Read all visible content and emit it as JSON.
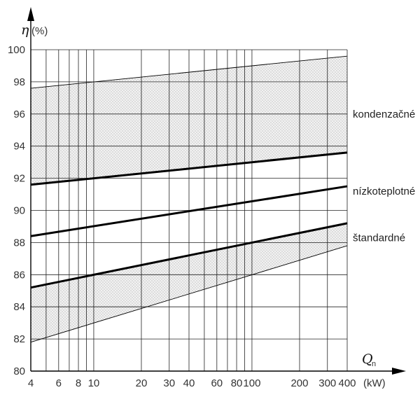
{
  "chart_data": {
    "type": "line",
    "x_scale": "log",
    "xlim": [
      4,
      400
    ],
    "ylim": [
      80,
      100
    ],
    "y_axis": {
      "symbol": "η",
      "unit": "(%)"
    },
    "x_axis": {
      "symbol": "Q",
      "subscript": "n",
      "unit": "(kW)"
    },
    "y_ticks": [
      80,
      82,
      84,
      86,
      88,
      90,
      92,
      94,
      96,
      98,
      100
    ],
    "x_ticks": [
      4,
      6,
      8,
      10,
      20,
      30,
      40,
      60,
      80,
      100,
      200,
      300,
      400
    ],
    "x_gridlines": [
      4,
      5,
      6,
      7,
      8,
      9,
      10,
      20,
      30,
      40,
      50,
      60,
      70,
      80,
      90,
      100,
      200,
      300,
      400
    ],
    "grid": true,
    "bands": [
      {
        "name": "kondenzačné",
        "lower": [
          [
            4,
            91.6
          ],
          [
            400,
            93.6
          ]
        ],
        "upper": [
          [
            4,
            97.6
          ],
          [
            400,
            99.6
          ]
        ]
      },
      {
        "name": "štandardné",
        "lower": [
          [
            4,
            81.8
          ],
          [
            400,
            87.8
          ]
        ],
        "upper": [
          [
            4,
            85.2
          ],
          [
            400,
            89.2
          ]
        ]
      }
    ],
    "series": [
      {
        "values": [
          [
            4,
            91.6
          ],
          [
            400,
            93.6
          ]
        ],
        "weight": "bold"
      },
      {
        "values": [
          [
            4,
            88.4
          ],
          [
            400,
            91.5
          ]
        ],
        "weight": "bold"
      },
      {
        "values": [
          [
            4,
            85.2
          ],
          [
            400,
            89.2
          ]
        ],
        "weight": "bold"
      },
      {
        "values": [
          [
            4,
            97.6
          ],
          [
            400,
            99.6
          ]
        ],
        "weight": "thin"
      },
      {
        "values": [
          [
            4,
            81.8
          ],
          [
            400,
            87.8
          ]
        ],
        "weight": "thin"
      }
    ],
    "annotations": [
      {
        "text": "kondenzačné",
        "y": 96
      },
      {
        "text": "nízkoteplotné",
        "y": 91.2
      },
      {
        "text": "štandardné",
        "y": 88.3
      }
    ]
  }
}
